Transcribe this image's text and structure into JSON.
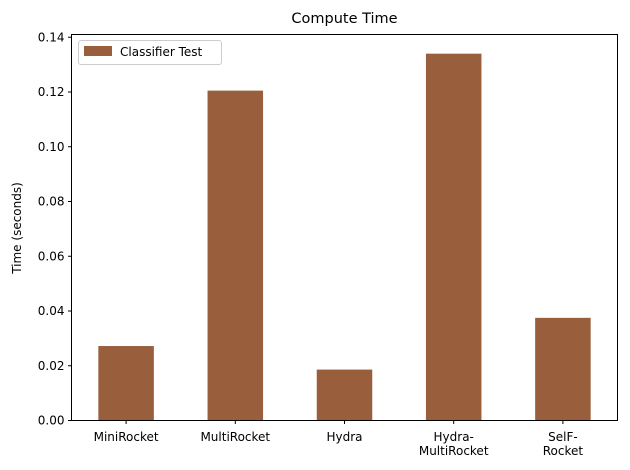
{
  "chart_data": {
    "type": "bar",
    "title": "Compute Time",
    "xlabel": "",
    "ylabel": "Time (seconds)",
    "categories": [
      [
        "MiniRocket"
      ],
      [
        "MultiRocket"
      ],
      [
        "Hydra"
      ],
      [
        "Hydra-",
        "MultiRocket"
      ],
      [
        "SelF-",
        "Rocket"
      ]
    ],
    "series": [
      {
        "name": "Classifier Test",
        "color": "#995e3b",
        "values": [
          0.0272,
          0.1205,
          0.0186,
          0.134,
          0.0375
        ]
      }
    ],
    "ylim": [
      0,
      0.141
    ],
    "yticks": [
      "0.00",
      "0.02",
      "0.04",
      "0.06",
      "0.08",
      "0.10",
      "0.12",
      "0.14"
    ],
    "ytick_values": [
      0,
      0.02,
      0.04,
      0.06,
      0.08,
      0.1,
      0.12,
      0.14
    ],
    "grid": false,
    "legend_position": "top-left"
  }
}
